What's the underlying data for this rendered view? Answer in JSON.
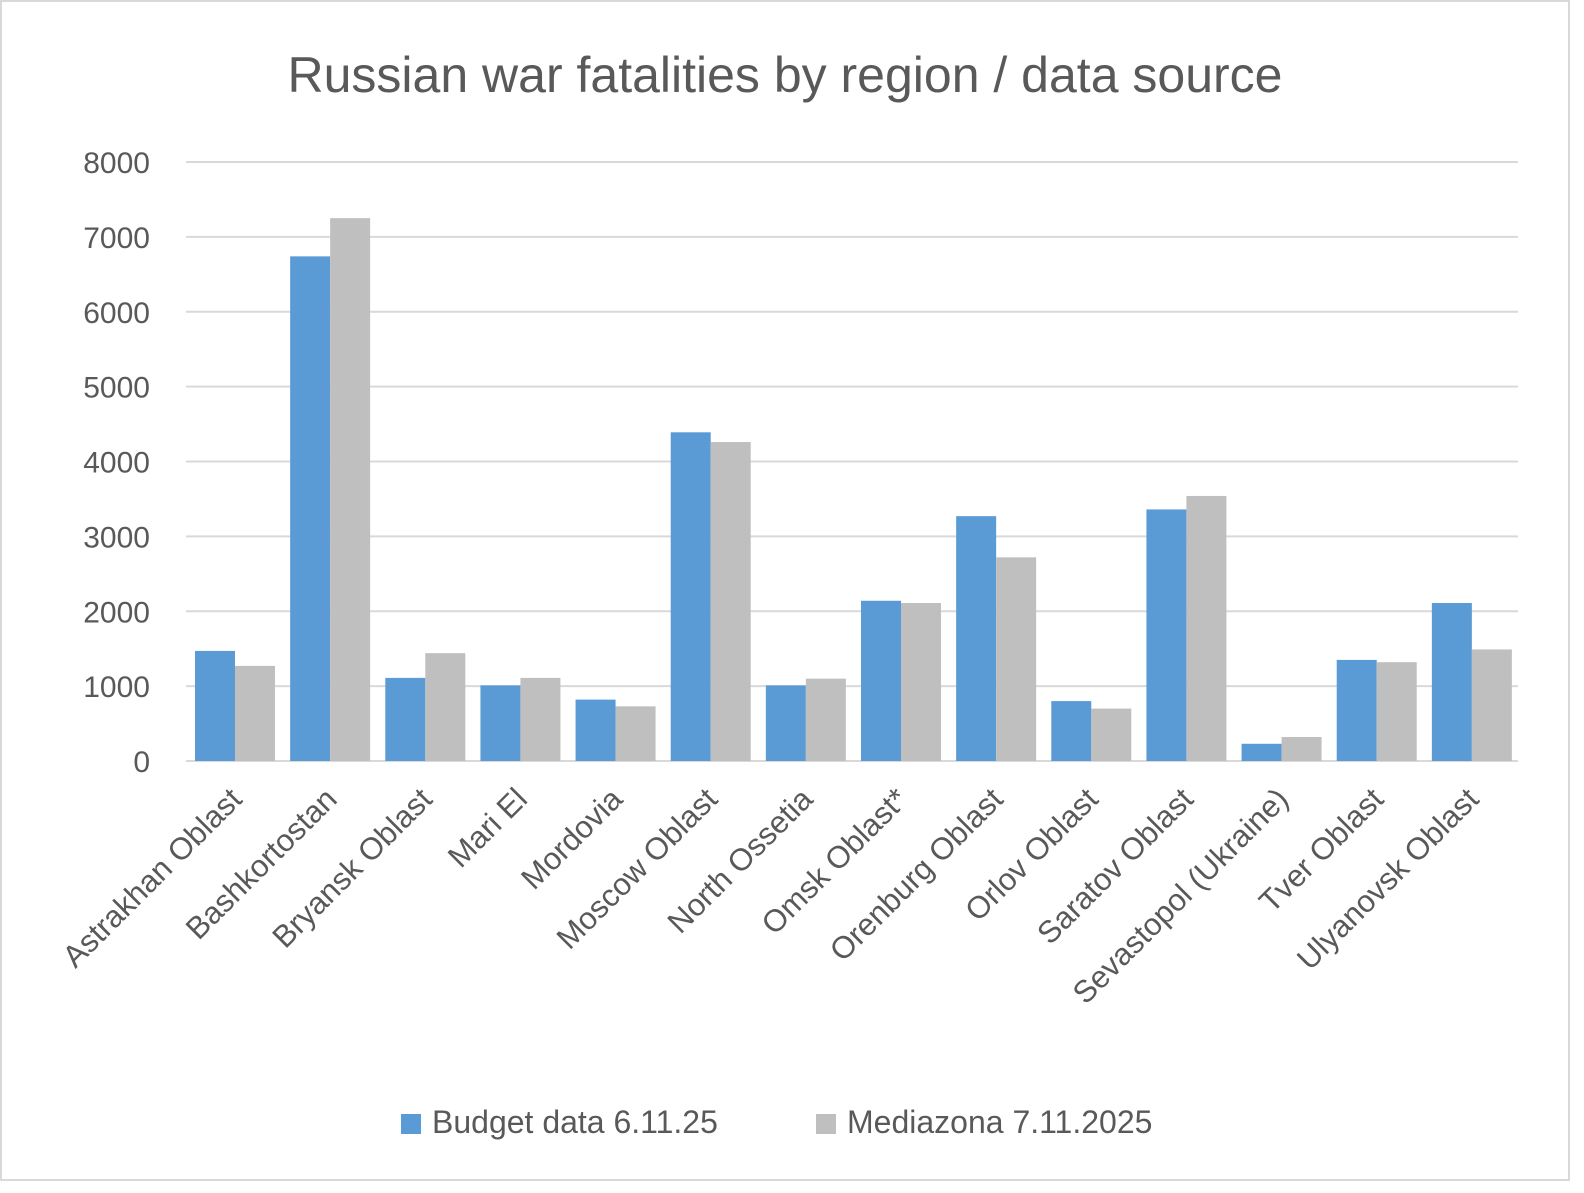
{
  "chart_data": {
    "type": "bar",
    "title": "Russian war fatalities by region / data source",
    "xlabel": "",
    "ylabel": "",
    "ylim": [
      0,
      8000
    ],
    "yticks": [
      0,
      1000,
      2000,
      3000,
      4000,
      5000,
      6000,
      7000,
      8000
    ],
    "grid": true,
    "legend_position": "bottom",
    "categories": [
      "Astrakhan Oblast",
      "Bashkortostan",
      "Bryansk Oblast",
      "Mari El",
      "Mordovia",
      "Moscow Oblast",
      "North Ossetia",
      "Omsk Oblast*",
      "Orenburg Oblast",
      "Orlov Oblast",
      "Saratov Oblast",
      "Sevastopol (Ukraine)",
      "Tver Oblast",
      "Ulyanovsk Oblast"
    ],
    "series": [
      {
        "name": "Budget data 6.11.25",
        "color": "#5b9bd5",
        "values": [
          1470,
          6740,
          1110,
          1010,
          820,
          4390,
          1010,
          2140,
          3270,
          800,
          3360,
          230,
          1350,
          2110
        ]
      },
      {
        "name": "Mediazona 7.11.2025",
        "color": "#bfbfbf",
        "values": [
          1270,
          7250,
          1440,
          1110,
          730,
          4260,
          1100,
          2110,
          2720,
          700,
          3540,
          320,
          1320,
          1490
        ]
      }
    ]
  }
}
